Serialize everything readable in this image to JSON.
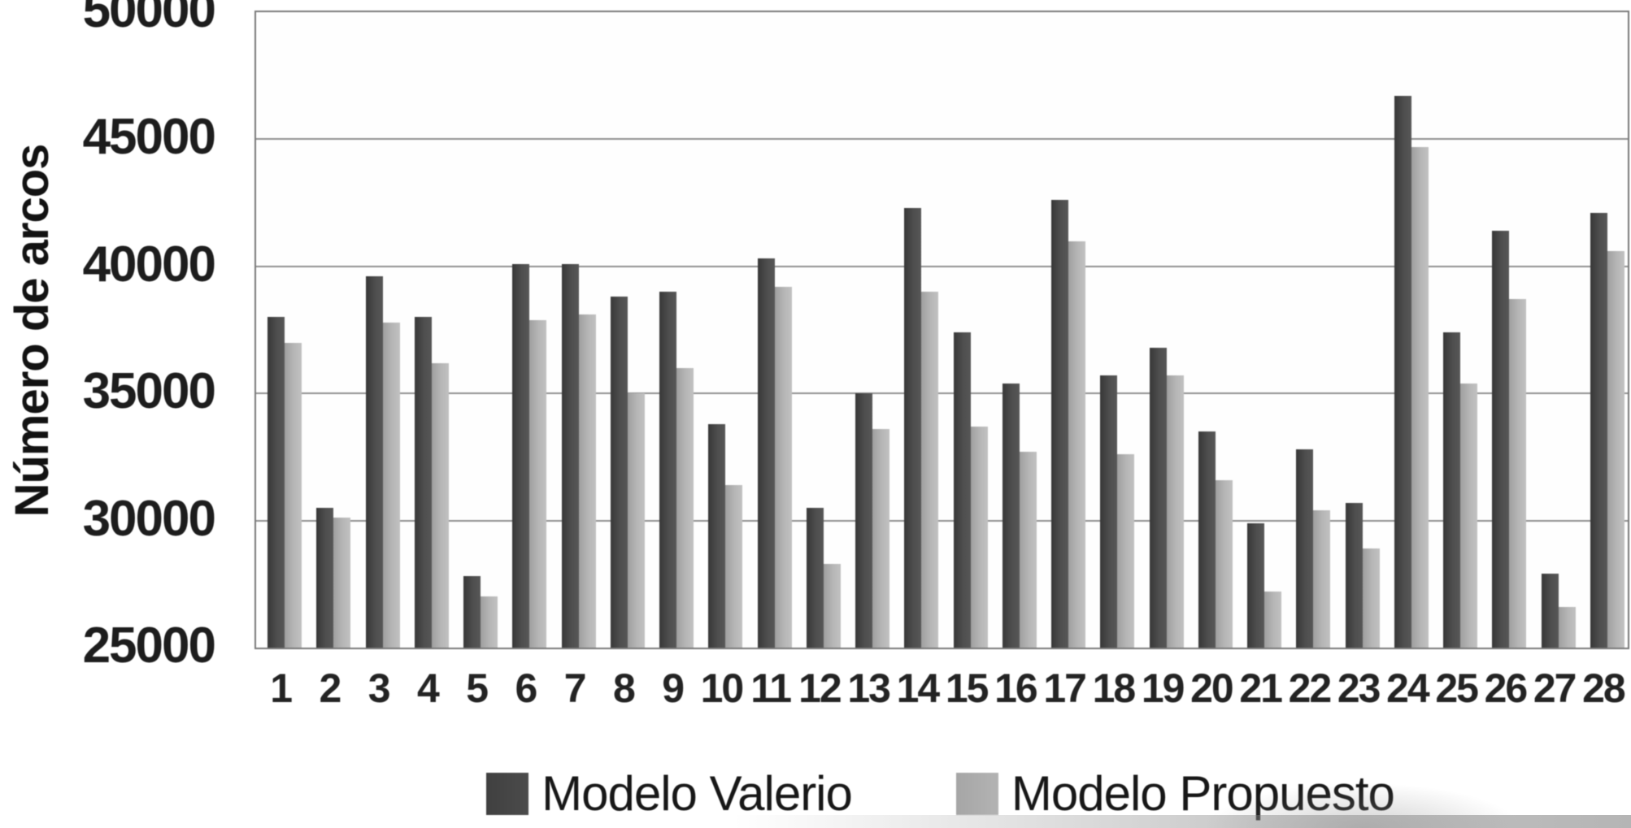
{
  "chart_data": {
    "type": "bar",
    "title": "",
    "xlabel": "",
    "ylabel": "Número de arcos",
    "ylim": [
      25000,
      50000
    ],
    "yticks": [
      25000,
      30000,
      35000,
      40000,
      45000,
      50000
    ],
    "grid": "horizontal",
    "legend_position": "bottom",
    "categories": [
      "1",
      "2",
      "3",
      "4",
      "5",
      "6",
      "7",
      "8",
      "9",
      "10",
      "11",
      "12",
      "13",
      "14",
      "15",
      "16",
      "17",
      "18",
      "19",
      "20",
      "21",
      "22",
      "23",
      "24",
      "25",
      "26",
      "27",
      "28"
    ],
    "series": [
      {
        "name": "Modelo Valerio",
        "color": "#4a4a4a",
        "values": [
          38000,
          30500,
          39600,
          38000,
          27800,
          40100,
          40100,
          38800,
          39000,
          33800,
          40300,
          30500,
          35000,
          42300,
          37400,
          35400,
          42600,
          35700,
          36800,
          33500,
          29900,
          32800,
          30700,
          46700,
          37400,
          41400,
          27900,
          42100
        ]
      },
      {
        "name": "Modelo Propuesto",
        "color": "#b3b3b3",
        "values": [
          37000,
          30100,
          37800,
          36200,
          27000,
          37900,
          38100,
          35000,
          36000,
          31400,
          39200,
          28300,
          33600,
          39000,
          33700,
          32700,
          41000,
          32600,
          35700,
          31600,
          27200,
          30400,
          28900,
          44700,
          35400,
          38700,
          26600,
          40600
        ]
      }
    ]
  },
  "colors": {
    "plot_border": "#787878",
    "gridline": "#8f8f8f",
    "axis_text": "#1c1c1c"
  }
}
